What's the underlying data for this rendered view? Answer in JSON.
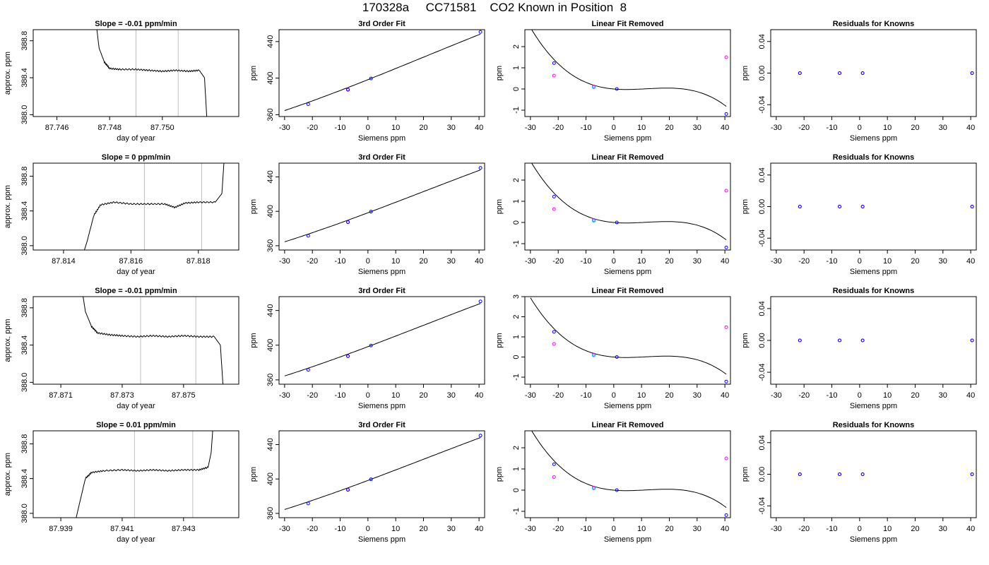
{
  "page_title": "170328a     CC71581    CO2 Known in Position  8",
  "colors": {
    "trace": "#000000",
    "marker_line": "#bebebe",
    "knowns": "#0000ff",
    "fit_points": "#ff00ff",
    "cyan_point": "#00bfff"
  },
  "chart_data": [
    {
      "type": "line",
      "title": "Slope =  -0.01  ppm/min",
      "xlabel": "day of year",
      "ylabel": "approx. ppm",
      "xlim": [
        87.7451,
        87.7529
      ],
      "ylim": [
        387.98,
        388.92
      ],
      "x_ticks": [
        "87.746",
        "87.748",
        "87.750"
      ],
      "y_ticks": [
        "388.0",
        "388.4",
        "388.8"
      ],
      "markers": [
        87.749,
        87.7506
      ],
      "x": [
        87.7474,
        87.7476,
        87.7478,
        87.748,
        87.7484,
        87.749,
        87.7495,
        87.75,
        87.7505,
        87.751,
        87.7514,
        87.7516,
        87.7517
      ],
      "y": [
        389.2,
        388.72,
        388.57,
        388.5,
        388.49,
        388.49,
        388.48,
        388.47,
        388.48,
        388.47,
        388.48,
        388.4,
        387.9
      ]
    },
    {
      "type": "scatter",
      "title": "3rd Order Fit",
      "xlabel": "Siemens ppm",
      "ylabel": "ppm",
      "xlim": [
        -32,
        42
      ],
      "ylim": [
        358,
        453
      ],
      "x_ticks": [
        "-30",
        "-20",
        "-10",
        "0",
        "10",
        "20",
        "30",
        "40"
      ],
      "y_ticks": [
        "360",
        "400",
        "440"
      ],
      "knowns_x": [
        -21.5,
        -7.2,
        1.1,
        40.5
      ],
      "knowns_y": [
        371.5,
        387.3,
        399.6,
        450.5
      ],
      "fit_points_x": [
        -7.2
      ],
      "fit_points_y": [
        387.6
      ],
      "curve_coeffs": [
        398.3,
        1.207,
        0.0018,
        -3e-05
      ]
    },
    {
      "type": "scatter",
      "title": "Linear Fit Removed",
      "xlabel": "Siemens ppm",
      "ylabel": "ppm",
      "xlim": [
        -32,
        42
      ],
      "ylim": [
        -1.3,
        2.8
      ],
      "x_ticks": [
        "-30",
        "-20",
        "-10",
        "0",
        "10",
        "20",
        "30",
        "40"
      ],
      "y_ticks": [
        "-1",
        "0",
        "1",
        "2"
      ],
      "knowns_x": [
        -21.5,
        -7.2,
        1.1,
        40.5
      ],
      "knowns_y": [
        1.22,
        0.08,
        0.0,
        -1.18
      ],
      "fit_points_x": [
        -21.5,
        -7.2,
        40.5
      ],
      "fit_points_y": [
        0.63,
        0.12,
        1.5
      ],
      "curve_coeffs": [
        0.0,
        -0.0113,
        0.00154,
        -4.35e-05
      ]
    },
    {
      "type": "scatter",
      "title": "Residuals for Knowns",
      "xlabel": "Siemens ppm",
      "ylabel": "ppm",
      "xlim": [
        -32,
        42
      ],
      "ylim": [
        -0.055,
        0.055
      ],
      "x_ticks": [
        "-30",
        "-20",
        "-10",
        "0",
        "10",
        "20",
        "30",
        "40"
      ],
      "y_ticks": [
        "-0.04",
        "0.00",
        "0.04"
      ],
      "knowns_x": [
        -21.5,
        -7.2,
        1.1,
        40.5
      ],
      "knowns_y": [
        0,
        0,
        0,
        0
      ],
      "fit_points_x": [
        -21.5,
        -7.2,
        1.1,
        40.5
      ],
      "fit_points_y": [
        0,
        0,
        0,
        0
      ]
    },
    {
      "type": "line",
      "title": "Slope =  0  ppm/min",
      "xlabel": "day of year",
      "ylabel": "approx. ppm",
      "xlim": [
        87.8131,
        87.8192
      ],
      "ylim": [
        387.95,
        388.95
      ],
      "x_ticks": [
        "87.814",
        "87.816",
        "87.818"
      ],
      "y_ticks": [
        "388.0",
        "388.4",
        "388.8"
      ],
      "markers": [
        87.8164,
        87.8181
      ],
      "x": [
        87.8145,
        87.8147,
        87.8149,
        87.8151,
        87.8155,
        87.816,
        87.8165,
        87.817,
        87.8173,
        87.8176,
        87.818,
        87.8185,
        87.8187,
        87.8188
      ],
      "y": [
        387.8,
        388.05,
        388.35,
        388.47,
        388.5,
        388.48,
        388.48,
        388.48,
        388.44,
        388.49,
        388.5,
        388.5,
        388.6,
        389.2
      ]
    },
    {
      "type": "scatter",
      "title": "3rd Order Fit",
      "xlabel": "Siemens ppm",
      "ylabel": "ppm",
      "xlim": [
        -32,
        42
      ],
      "ylim": [
        355,
        456
      ],
      "x_ticks": [
        "-30",
        "-20",
        "-10",
        "0",
        "10",
        "20",
        "30",
        "40"
      ],
      "y_ticks": [
        "360",
        "400",
        "440"
      ],
      "knowns_x": [
        -21.5,
        -7.2,
        1.1,
        40.5
      ],
      "knowns_y": [
        371.5,
        387.3,
        399.6,
        450.5
      ],
      "fit_points_x": [
        -7.2
      ],
      "fit_points_y": [
        387.6
      ],
      "curve_coeffs": [
        398.3,
        1.207,
        0.0018,
        -3e-05
      ]
    },
    {
      "type": "scatter",
      "title": "Linear Fit Removed",
      "xlabel": "Siemens ppm",
      "ylabel": "ppm",
      "xlim": [
        -32,
        42
      ],
      "ylim": [
        -1.3,
        2.8
      ],
      "x_ticks": [
        "-30",
        "-20",
        "-10",
        "0",
        "10",
        "20",
        "30",
        "40"
      ],
      "y_ticks": [
        "-1",
        "0",
        "1",
        "2"
      ],
      "knowns_x": [
        -21.5,
        -7.2,
        1.1,
        40.5
      ],
      "knowns_y": [
        1.22,
        0.08,
        0.0,
        -1.18
      ],
      "fit_points_x": [
        -21.5,
        -7.2,
        40.5
      ],
      "fit_points_y": [
        0.63,
        0.12,
        1.5
      ],
      "curve_coeffs": [
        0.0,
        -0.0113,
        0.00154,
        -4.35e-05
      ]
    },
    {
      "type": "scatter",
      "title": "Residuals for Knowns",
      "xlabel": "Siemens ppm",
      "ylabel": "ppm",
      "xlim": [
        -32,
        42
      ],
      "ylim": [
        -0.055,
        0.055
      ],
      "x_ticks": [
        "-30",
        "-20",
        "-10",
        "0",
        "10",
        "20",
        "30",
        "40"
      ],
      "y_ticks": [
        "-0.04",
        "0.00",
        "0.04"
      ],
      "knowns_x": [
        -21.5,
        -7.2,
        1.1,
        40.5
      ],
      "knowns_y": [
        0,
        0,
        0,
        0
      ],
      "fit_points_x": [
        -21.5,
        -7.2,
        1.1,
        40.5
      ],
      "fit_points_y": [
        0,
        0,
        0,
        0
      ]
    },
    {
      "type": "line",
      "title": "Slope =  -0.01  ppm/min",
      "xlabel": "day of year",
      "ylabel": "approx. ppm",
      "xlim": [
        87.8701,
        87.8768
      ],
      "ylim": [
        387.98,
        388.92
      ],
      "x_ticks": [
        "87.871",
        "87.873",
        "87.875"
      ],
      "y_ticks": [
        "388.0",
        "388.4",
        "388.8"
      ],
      "markers": [
        87.8736,
        87.8754
      ],
      "x": [
        87.8716,
        87.8718,
        87.872,
        87.8722,
        87.8726,
        87.873,
        87.8735,
        87.874,
        87.8745,
        87.875,
        87.8755,
        87.876,
        87.8762,
        87.8763
      ],
      "y": [
        389.2,
        388.76,
        388.6,
        388.53,
        388.51,
        388.5,
        388.49,
        388.5,
        388.49,
        388.5,
        388.49,
        388.49,
        388.4,
        387.9
      ]
    },
    {
      "type": "scatter",
      "title": "3rd Order Fit",
      "xlabel": "Siemens ppm",
      "ylabel": "ppm",
      "xlim": [
        -32,
        42
      ],
      "ylim": [
        355,
        456
      ],
      "x_ticks": [
        "-30",
        "-20",
        "-10",
        "0",
        "10",
        "20",
        "30",
        "40"
      ],
      "y_ticks": [
        "360",
        "400",
        "440"
      ],
      "knowns_x": [
        -21.5,
        -7.2,
        1.1,
        40.5
      ],
      "knowns_y": [
        371.5,
        387.3,
        399.6,
        450.5
      ],
      "fit_points_x": [
        -7.2
      ],
      "fit_points_y": [
        387.6
      ],
      "curve_coeffs": [
        398.3,
        1.207,
        0.0018,
        -3e-05
      ]
    },
    {
      "type": "scatter",
      "title": "Linear Fit Removed",
      "xlabel": "Siemens ppm",
      "ylabel": "ppm",
      "xlim": [
        -32,
        42
      ],
      "ylim": [
        -1.35,
        3.0
      ],
      "x_ticks": [
        "-30",
        "-20",
        "-10",
        "0",
        "10",
        "20",
        "30",
        "40"
      ],
      "y_ticks": [
        "-1",
        "0",
        "1",
        "2",
        "3"
      ],
      "knowns_x": [
        -21.5,
        -7.2,
        1.1,
        40.5
      ],
      "knowns_y": [
        1.25,
        0.08,
        0.0,
        -1.22
      ],
      "fit_points_x": [
        -21.5,
        -7.2,
        40.5
      ],
      "fit_points_y": [
        0.65,
        0.12,
        1.48
      ],
      "curve_coeffs": [
        0.0,
        -0.0113,
        0.00156,
        -4.45e-05
      ]
    },
    {
      "type": "scatter",
      "title": "Residuals for Knowns",
      "xlabel": "Siemens ppm",
      "ylabel": "ppm",
      "xlim": [
        -32,
        42
      ],
      "ylim": [
        -0.055,
        0.055
      ],
      "x_ticks": [
        "-30",
        "-20",
        "-10",
        "0",
        "10",
        "20",
        "30",
        "40"
      ],
      "y_ticks": [
        "-0.04",
        "0.00",
        "0.04"
      ],
      "knowns_x": [
        -21.5,
        -7.2,
        1.1,
        40.5
      ],
      "knowns_y": [
        0,
        0,
        0,
        0
      ],
      "fit_points_x": [
        -21.5,
        -7.2,
        1.1,
        40.5
      ],
      "fit_points_y": [
        0,
        0,
        0,
        0
      ]
    },
    {
      "type": "line",
      "title": "Slope =  0.01  ppm/min",
      "xlabel": "day of year",
      "ylabel": "approx. ppm",
      "xlim": [
        87.9381,
        87.9448
      ],
      "ylim": [
        387.95,
        388.95
      ],
      "x_ticks": [
        "87.939",
        "87.941",
        "87.943"
      ],
      "y_ticks": [
        "388.0",
        "388.4",
        "388.8"
      ],
      "markers": [
        87.9414,
        87.9433
      ],
      "x": [
        87.9394,
        87.9396,
        87.9398,
        87.94,
        87.9404,
        87.941,
        87.9415,
        87.942,
        87.9425,
        87.943,
        87.9435,
        87.9438,
        87.9439,
        87.944
      ],
      "y": [
        387.8,
        388.1,
        388.4,
        388.47,
        388.49,
        388.5,
        388.49,
        388.5,
        388.49,
        388.5,
        388.5,
        388.53,
        388.7,
        389.2
      ]
    },
    {
      "type": "scatter",
      "title": "3rd Order Fit",
      "xlabel": "Siemens ppm",
      "ylabel": "ppm",
      "xlim": [
        -32,
        42
      ],
      "ylim": [
        355,
        456
      ],
      "x_ticks": [
        "-30",
        "-20",
        "-10",
        "0",
        "10",
        "20",
        "30",
        "40"
      ],
      "y_ticks": [
        "360",
        "400",
        "440"
      ],
      "knowns_x": [
        -21.5,
        -7.2,
        1.1,
        40.5
      ],
      "knowns_y": [
        371.5,
        387.3,
        399.6,
        450.5
      ],
      "fit_points_x": [
        -7.2
      ],
      "fit_points_y": [
        387.6
      ],
      "curve_coeffs": [
        398.3,
        1.207,
        0.0018,
        -3e-05
      ]
    },
    {
      "type": "scatter",
      "title": "Linear Fit Removed",
      "xlabel": "Siemens ppm",
      "ylabel": "ppm",
      "xlim": [
        -32,
        42
      ],
      "ylim": [
        -1.3,
        2.8
      ],
      "x_ticks": [
        "-30",
        "-20",
        "-10",
        "0",
        "10",
        "20",
        "30",
        "40"
      ],
      "y_ticks": [
        "-1",
        "0",
        "1",
        "2"
      ],
      "knowns_x": [
        -21.5,
        -7.2,
        1.1,
        40.5
      ],
      "knowns_y": [
        1.22,
        0.08,
        0.0,
        -1.18
      ],
      "fit_points_x": [
        -21.5,
        -7.2,
        40.5
      ],
      "fit_points_y": [
        0.62,
        0.12,
        1.5
      ],
      "curve_coeffs": [
        0.0,
        -0.0113,
        0.00154,
        -4.35e-05
      ]
    },
    {
      "type": "scatter",
      "title": "Residuals for Knowns",
      "xlabel": "Siemens ppm",
      "ylabel": "ppm",
      "xlim": [
        -32,
        42
      ],
      "ylim": [
        -0.055,
        0.055
      ],
      "x_ticks": [
        "-30",
        "-20",
        "-10",
        "0",
        "10",
        "20",
        "30",
        "40"
      ],
      "y_ticks": [
        "-0.04",
        "0.00",
        "0.04"
      ],
      "knowns_x": [
        -21.5,
        -7.2,
        1.1,
        40.5
      ],
      "knowns_y": [
        0,
        0,
        0,
        0
      ],
      "fit_points_x": [
        -21.5,
        -7.2,
        1.1,
        40.5
      ],
      "fit_points_y": [
        0,
        0,
        0,
        0
      ]
    }
  ]
}
